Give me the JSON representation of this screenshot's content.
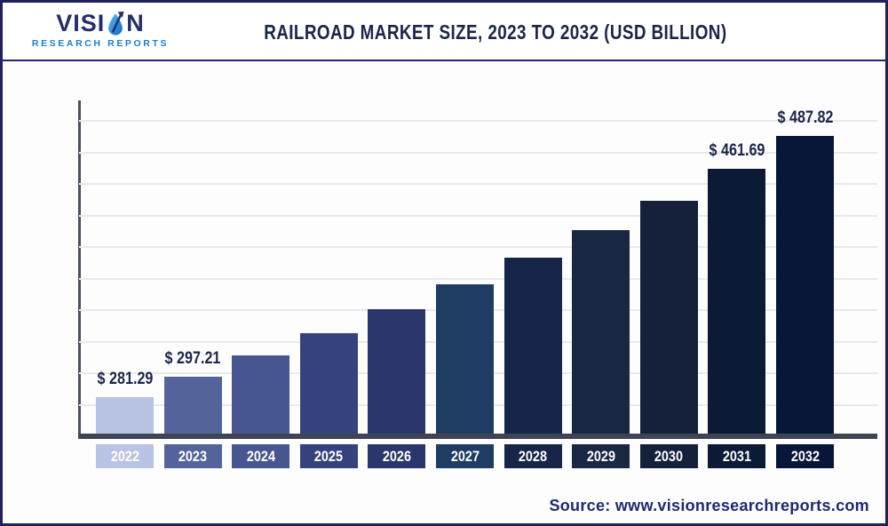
{
  "header": {
    "logo": {
      "name_pre": "VISI",
      "name_post": "N",
      "tagline": "RESEARCH REPORTS"
    },
    "title": "RAILROAD MARKET SIZE, 2023 TO 2032 (USD BILLION)"
  },
  "footer": {
    "source": "Source: www.visionresearchreports.com"
  },
  "colors": {
    "title_text": "#1b2547",
    "border": "#20205c",
    "axis_line": "#3e4454",
    "gridline": "#e9e9ec",
    "logo_blue": "#1581d2",
    "source_text": "#1e2a6e"
  },
  "chart_data": {
    "type": "bar",
    "title": "Railroad Market Size, 2023 to 2032 (USD Billion)",
    "xlabel": "",
    "ylabel": "",
    "ylim": [
      250,
      500
    ],
    "grid_step": 25,
    "grid": true,
    "legend": "none",
    "y_tick_labels_shown": false,
    "categories": [
      "2022",
      "2023",
      "2024",
      "2025",
      "2026",
      "2027",
      "2028",
      "2029",
      "2030",
      "2031",
      "2032"
    ],
    "values": [
      281.29,
      297.21,
      314.03,
      331.8,
      350.58,
      370.42,
      391.38,
      413.53,
      436.94,
      461.69,
      487.82
    ],
    "note": "Only 2022, 2023, 2031 and 2032 carry visible data labels; other values estimated from bar heights / implied CAGR.",
    "bars": [
      {
        "year": "2022",
        "value": 281.29,
        "label": "$ 281.29",
        "color": "#b9c3e4"
      },
      {
        "year": "2023",
        "value": 297.21,
        "label": "$ 297.21",
        "color": "#54649b"
      },
      {
        "year": "2024",
        "value": 314.03,
        "label": null,
        "color": "#475690"
      },
      {
        "year": "2025",
        "value": 331.8,
        "label": null,
        "color": "#36427d"
      },
      {
        "year": "2026",
        "value": 350.58,
        "label": null,
        "color": "#2b366c"
      },
      {
        "year": "2027",
        "value": 370.42,
        "label": null,
        "color": "#1f3c63"
      },
      {
        "year": "2028",
        "value": 391.38,
        "label": null,
        "color": "#172549"
      },
      {
        "year": "2029",
        "value": 413.53,
        "label": null,
        "color": "#1a2743"
      },
      {
        "year": "2030",
        "value": 436.94,
        "label": null,
        "color": "#15203b"
      },
      {
        "year": "2031",
        "value": 461.69,
        "label": "$ 461.69",
        "color": "#0d1a35"
      },
      {
        "year": "2032",
        "value": 487.82,
        "label": "$ 487.82",
        "color": "#081637"
      }
    ]
  }
}
